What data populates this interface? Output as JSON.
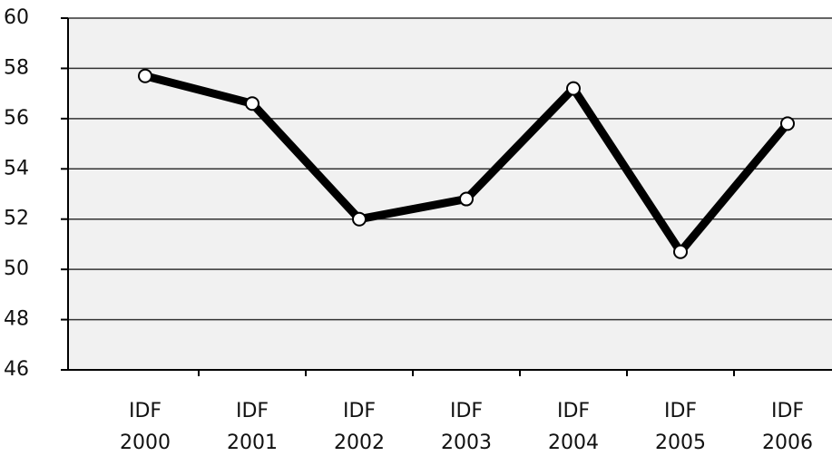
{
  "chart_data": {
    "type": "line",
    "categories": [
      "IDF 2000",
      "IDF 2001",
      "IDF 2002",
      "IDF 2003",
      "IDF 2004",
      "IDF 2005",
      "IDF 2006"
    ],
    "series": [
      {
        "values": [
          57.7,
          56.6,
          52.0,
          52.8,
          57.2,
          50.7,
          55.8
        ],
        "color": "#000000"
      }
    ],
    "ylim": [
      46,
      60
    ],
    "yticks": [
      46,
      48,
      50,
      52,
      54,
      56,
      58,
      60
    ],
    "grid": true
  }
}
